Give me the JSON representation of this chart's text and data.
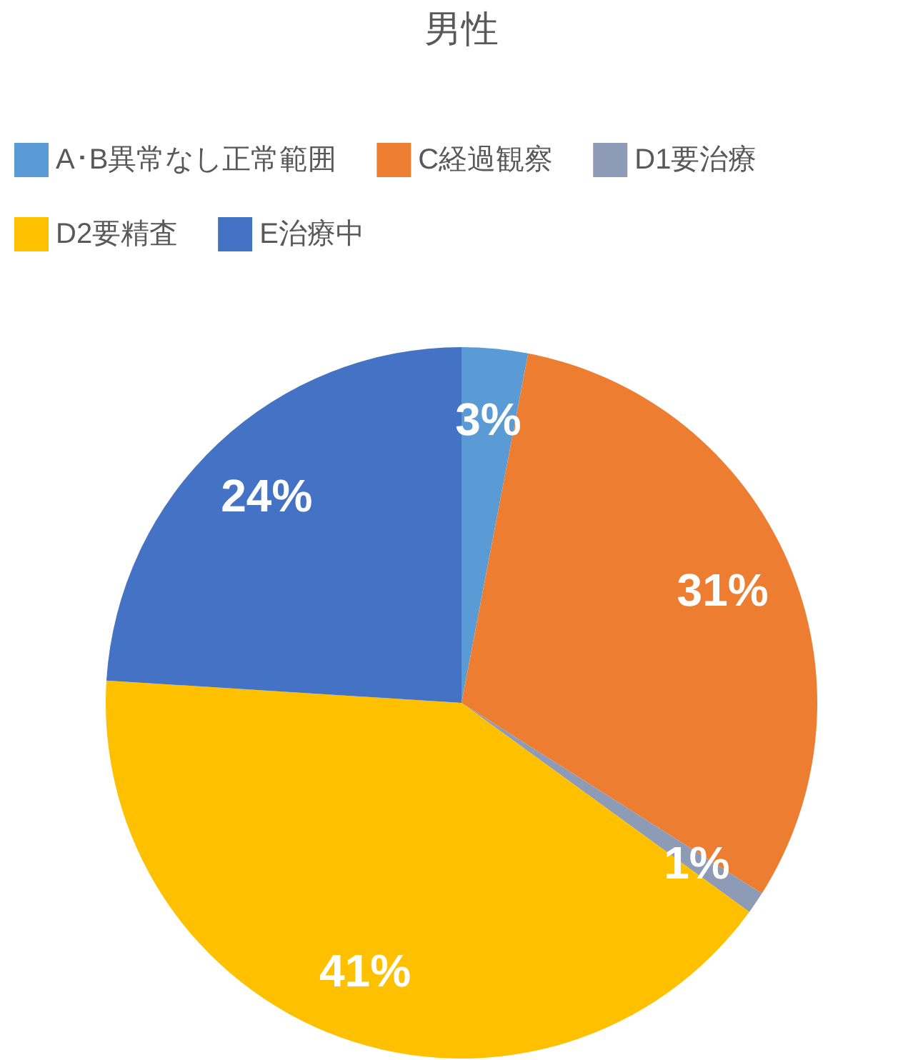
{
  "chart_data": {
    "type": "pie",
    "title": "男性",
    "categories": [
      "A･B異常なし正常範囲",
      "C経過観察",
      "D1要治療",
      "D2要精査",
      "E治療中"
    ],
    "values": [
      3,
      31,
      1,
      41,
      24
    ],
    "colors": [
      "#5b9bd5",
      "#ed7d31",
      "#8e9bb6",
      "#ffc000",
      "#4472c4"
    ],
    "value_labels": [
      "3%",
      "31%",
      "1%",
      "41%",
      "24%"
    ],
    "legend": "top"
  }
}
